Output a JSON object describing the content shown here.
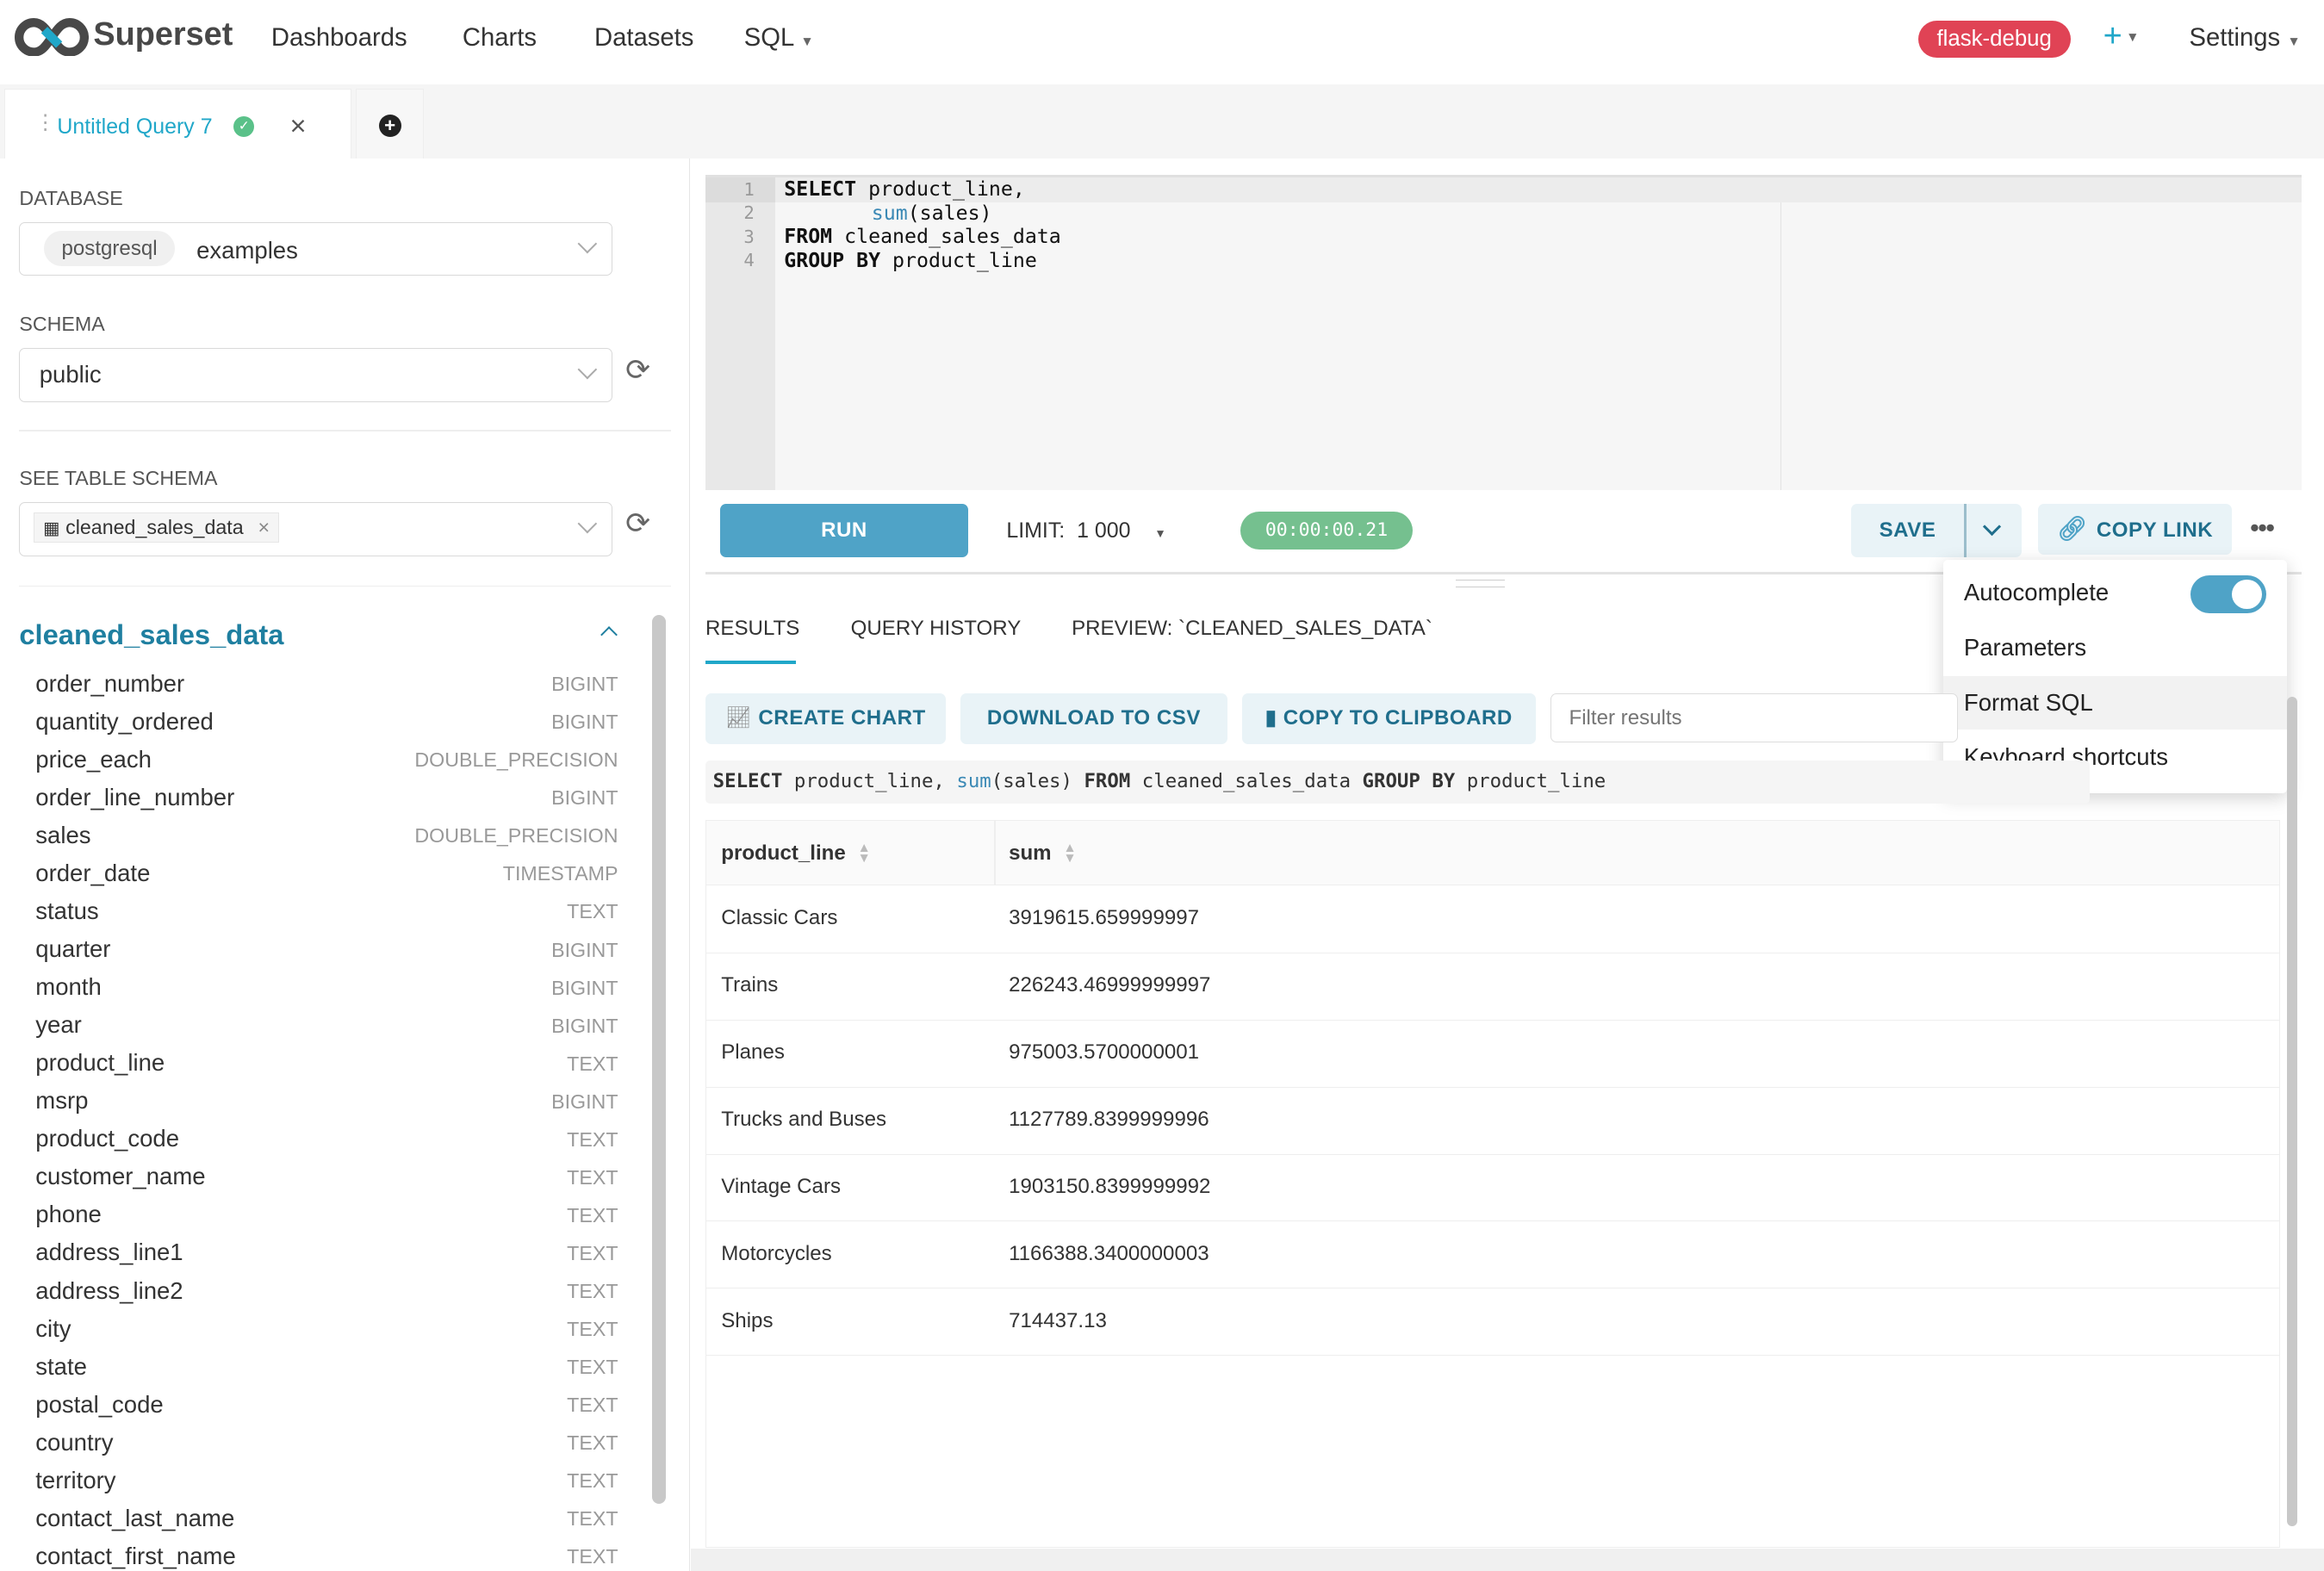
{
  "navbar": {
    "brand": "Superset",
    "items": [
      "Dashboards",
      "Charts",
      "Datasets",
      "SQL"
    ],
    "env_badge": "flask-debug",
    "plus_label": "+",
    "settings": "Settings",
    "badge_color": "#e04355"
  },
  "query_tab": {
    "title": "Untitled Query 7",
    "status": "success",
    "close": "×",
    "add": "+"
  },
  "left": {
    "database_label": "DATABASE",
    "database_tag": "postgresql",
    "database_value": "examples",
    "schema_label": "SCHEMA",
    "schema_value": "public",
    "table_schema_label": "SEE TABLE SCHEMA",
    "table_value": "cleaned_sales_data",
    "table_title": "cleaned_sales_data",
    "columns": [
      {
        "name": "order_number",
        "type": "BIGINT"
      },
      {
        "name": "quantity_ordered",
        "type": "BIGINT"
      },
      {
        "name": "price_each",
        "type": "DOUBLE_PRECISION"
      },
      {
        "name": "order_line_number",
        "type": "BIGINT"
      },
      {
        "name": "sales",
        "type": "DOUBLE_PRECISION"
      },
      {
        "name": "order_date",
        "type": "TIMESTAMP"
      },
      {
        "name": "status",
        "type": "TEXT"
      },
      {
        "name": "quarter",
        "type": "BIGINT"
      },
      {
        "name": "month",
        "type": "BIGINT"
      },
      {
        "name": "year",
        "type": "BIGINT"
      },
      {
        "name": "product_line",
        "type": "TEXT"
      },
      {
        "name": "msrp",
        "type": "BIGINT"
      },
      {
        "name": "product_code",
        "type": "TEXT"
      },
      {
        "name": "customer_name",
        "type": "TEXT"
      },
      {
        "name": "phone",
        "type": "TEXT"
      },
      {
        "name": "address_line1",
        "type": "TEXT"
      },
      {
        "name": "address_line2",
        "type": "TEXT"
      },
      {
        "name": "city",
        "type": "TEXT"
      },
      {
        "name": "state",
        "type": "TEXT"
      },
      {
        "name": "postal_code",
        "type": "TEXT"
      },
      {
        "name": "country",
        "type": "TEXT"
      },
      {
        "name": "territory",
        "type": "TEXT"
      },
      {
        "name": "contact_last_name",
        "type": "TEXT"
      },
      {
        "name": "contact_first_name",
        "type": "TEXT"
      }
    ]
  },
  "editor": {
    "line_numbers": [
      "1",
      "2",
      "3",
      "4"
    ],
    "l1_kw": "SELECT",
    "l1_rest": " product_line,",
    "l2_fn": "sum",
    "l2_rest": "(sales)",
    "l3_kw": "FROM",
    "l3_rest": " cleaned_sales_data",
    "l4_kw": "GROUP BY",
    "l4_rest": " product_line"
  },
  "toolbar": {
    "run": "RUN",
    "limit_label": "LIMIT:",
    "limit_value": "1 000",
    "timer": "00:00:00.21",
    "save": "SAVE",
    "copy_link": "COPY LINK",
    "accent": "#4fa3c7",
    "timer_color": "#75c08f"
  },
  "menu": {
    "items": [
      "Autocomplete",
      "Parameters",
      "Format SQL",
      "Keyboard shortcuts"
    ],
    "autocomplete_on": true
  },
  "results": {
    "tabs": [
      "RESULTS",
      "QUERY HISTORY",
      "PREVIEW: `CLEANED_SALES_DATA`"
    ],
    "active_tab": "RESULTS",
    "create_chart": "CREATE CHART",
    "download_csv": "DOWNLOAD TO CSV",
    "copy_clipboard": "COPY TO CLIPBOARD",
    "filter_placeholder": "Filter results",
    "executed_sql": {
      "kw1": "SELECT",
      "a": " product_line, ",
      "fn": "sum",
      "b": "(sales) ",
      "kw2": "FROM",
      "c": " cleaned_sales_data ",
      "kw3": "GROUP BY",
      "d": " product_line"
    },
    "columns": [
      "product_line",
      "sum"
    ],
    "rows": [
      [
        "Classic Cars",
        "3919615.659999997"
      ],
      [
        "Trains",
        "226243.46999999997"
      ],
      [
        "Planes",
        "975003.5700000001"
      ],
      [
        "Trucks and Buses",
        "1127789.8399999996"
      ],
      [
        "Vintage Cars",
        "1903150.8399999992"
      ],
      [
        "Motorcycles",
        "1166388.3400000003"
      ],
      [
        "Ships",
        "714437.13"
      ]
    ]
  }
}
